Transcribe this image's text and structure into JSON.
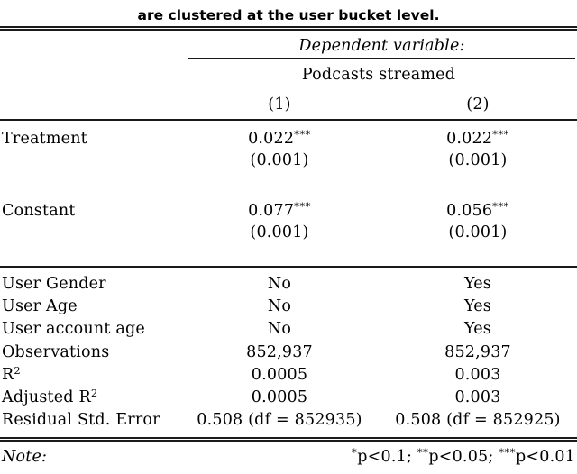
{
  "caption": "are clustered at the user bucket level.",
  "colors": {
    "text": "#000000",
    "rule": "#1a1a1a",
    "background": "#ffffff"
  },
  "header": {
    "dependent_variable_label": "Dependent variable:",
    "dependent_variable_name": "Podcasts streamed",
    "column_headers": [
      "(1)",
      "(2)"
    ]
  },
  "coefficients": [
    {
      "label": "Treatment",
      "estimates": [
        "0.022",
        "0.022"
      ],
      "stars": [
        "***",
        "***"
      ],
      "std_errors": [
        "(0.001)",
        "(0.001)"
      ]
    },
    {
      "label": "Constant",
      "estimates": [
        "0.077",
        "0.056"
      ],
      "stars": [
        "***",
        "***"
      ],
      "std_errors": [
        "(0.001)",
        "(0.001)"
      ]
    }
  ],
  "summary_rows": [
    {
      "label": "User Gender",
      "values": [
        "No",
        "Yes"
      ]
    },
    {
      "label": "User Age",
      "values": [
        "No",
        "Yes"
      ]
    },
    {
      "label": "User account age",
      "values": [
        "No",
        "Yes"
      ]
    },
    {
      "label": "Observations",
      "values": [
        "852,937",
        "852,937"
      ]
    },
    {
      "label": "R",
      "label_sup": "2",
      "values": [
        "0.0005",
        "0.003"
      ]
    },
    {
      "label": "Adjusted R",
      "label_sup": "2",
      "values": [
        "0.0005",
        "0.003"
      ]
    },
    {
      "label": "Residual Std. Error",
      "values": [
        "0.508 (df = 852935)",
        "0.508 (df = 852925)"
      ]
    }
  ],
  "note": {
    "label": "Note:",
    "s1": "*",
    "t1": "p<0.1; ",
    "s2": "**",
    "t2": "p<0.05; ",
    "s3": "***",
    "t3": "p<0.01"
  }
}
